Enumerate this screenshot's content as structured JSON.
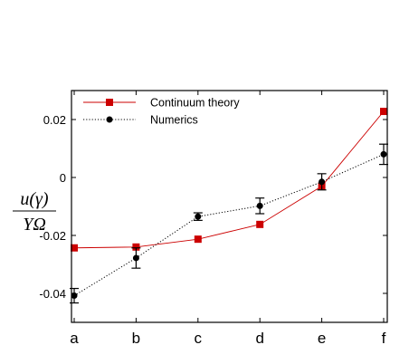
{
  "chart_data": {
    "type": "line",
    "categories": [
      "a",
      "b",
      "c",
      "d",
      "e",
      "f"
    ],
    "ylim": [
      -0.05,
      0.03
    ],
    "yticks": [
      0.02,
      0,
      -0.02,
      -0.04
    ],
    "ytick_labels": [
      "0.02",
      "0",
      "-0.02",
      "-0.04"
    ],
    "ylabel": {
      "numerator": "u(γ)",
      "denominator": "YΩ"
    },
    "xlabel": "",
    "title": "",
    "legend_position": "top-left",
    "grid": false,
    "series": [
      {
        "name": "Continuum theory",
        "values": [
          -0.0243,
          -0.024,
          -0.0213,
          -0.0162,
          -0.003,
          0.0228
        ],
        "color": "#cc0000",
        "marker": "square",
        "line_style": "solid"
      },
      {
        "name": "Numerics",
        "values": [
          -0.0408,
          -0.0278,
          -0.0135,
          -0.0098,
          -0.0015,
          0.008
        ],
        "errors": [
          0.0025,
          0.0035,
          0.0013,
          0.0027,
          0.0028,
          0.0035
        ],
        "color": "#000000",
        "marker": "circle",
        "line_style": "dotted"
      }
    ]
  }
}
